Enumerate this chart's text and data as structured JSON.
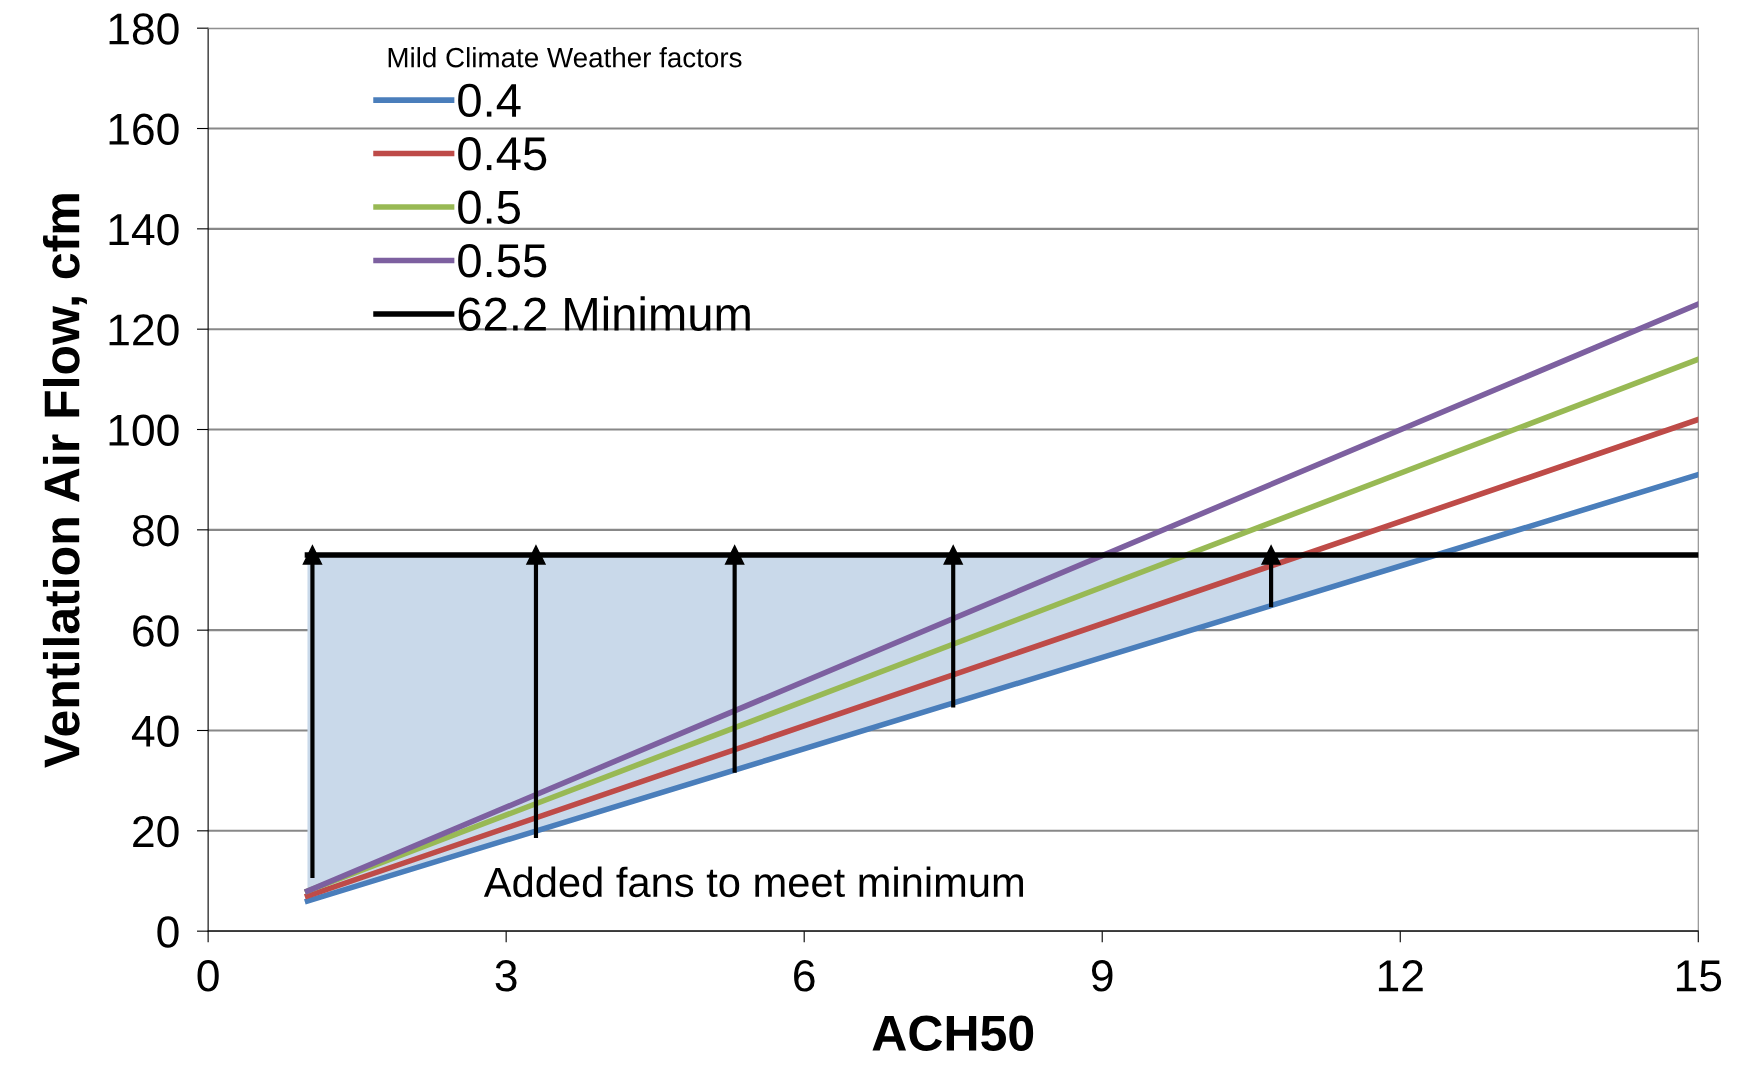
{
  "chart_data": {
    "type": "line",
    "xlabel": "ACH50",
    "ylabel": "Ventilation Air Flow, cfm",
    "legend_title": "Mild Climate Weather factors",
    "x": [
      1,
      15
    ],
    "series": [
      {
        "name": "0.4",
        "color": "#4a7ebb",
        "values": [
          6,
          91
        ]
      },
      {
        "name": "0.45",
        "color": "#be4b48",
        "values": [
          7,
          102
        ]
      },
      {
        "name": "0.5",
        "color": "#98b954",
        "values": [
          8,
          114
        ]
      },
      {
        "name": "0.55",
        "color": "#7d60a0",
        "values": [
          8,
          125
        ]
      },
      {
        "name": "62.2 Minimum",
        "color": "#000000",
        "x": [
          1,
          12.4,
          15
        ],
        "values": [
          75,
          75,
          75
        ],
        "lower": [
          6,
          75,
          75
        ],
        "upper": [
          75,
          75,
          75
        ]
      },
      {
        "type": "line",
        "marker": "triangle",
        "color": "#000000",
        "x": [
          1.05,
          1.05
        ],
        "values": [
          11,
          75
        ]
      },
      {
        "type": "line",
        "marker": "triangle",
        "color": "#000000",
        "x": [
          3.3,
          3.3
        ],
        "values": [
          19,
          75
        ]
      },
      {
        "type": "line",
        "marker": "triangle",
        "color": "#000000",
        "x": [
          5.3,
          5.3
        ],
        "values": [
          32,
          75
        ]
      },
      {
        "type": "line",
        "marker": "triangle",
        "color": "#000000",
        "x": [
          7.5,
          7.5
        ],
        "values": [
          45,
          75
        ]
      },
      {
        "type": "line",
        "marker": "triangle",
        "color": "#000000",
        "x": [
          10.7,
          10.7
        ],
        "values": [
          65,
          75
        ]
      }
    ],
    "annotations": [
      "Added fans to meet minimum"
    ],
    "xlim": [
      0,
      15
    ],
    "xticks": [
      0,
      3,
      6,
      9,
      12,
      15
    ],
    "ylim": [
      0,
      180
    ],
    "yticks": [
      0,
      20,
      40,
      60,
      80,
      100,
      120,
      140,
      160,
      180
    ],
    "grid": "y",
    "legend": "top left",
    "marker": "none",
    "line_style": "solid"
  }
}
